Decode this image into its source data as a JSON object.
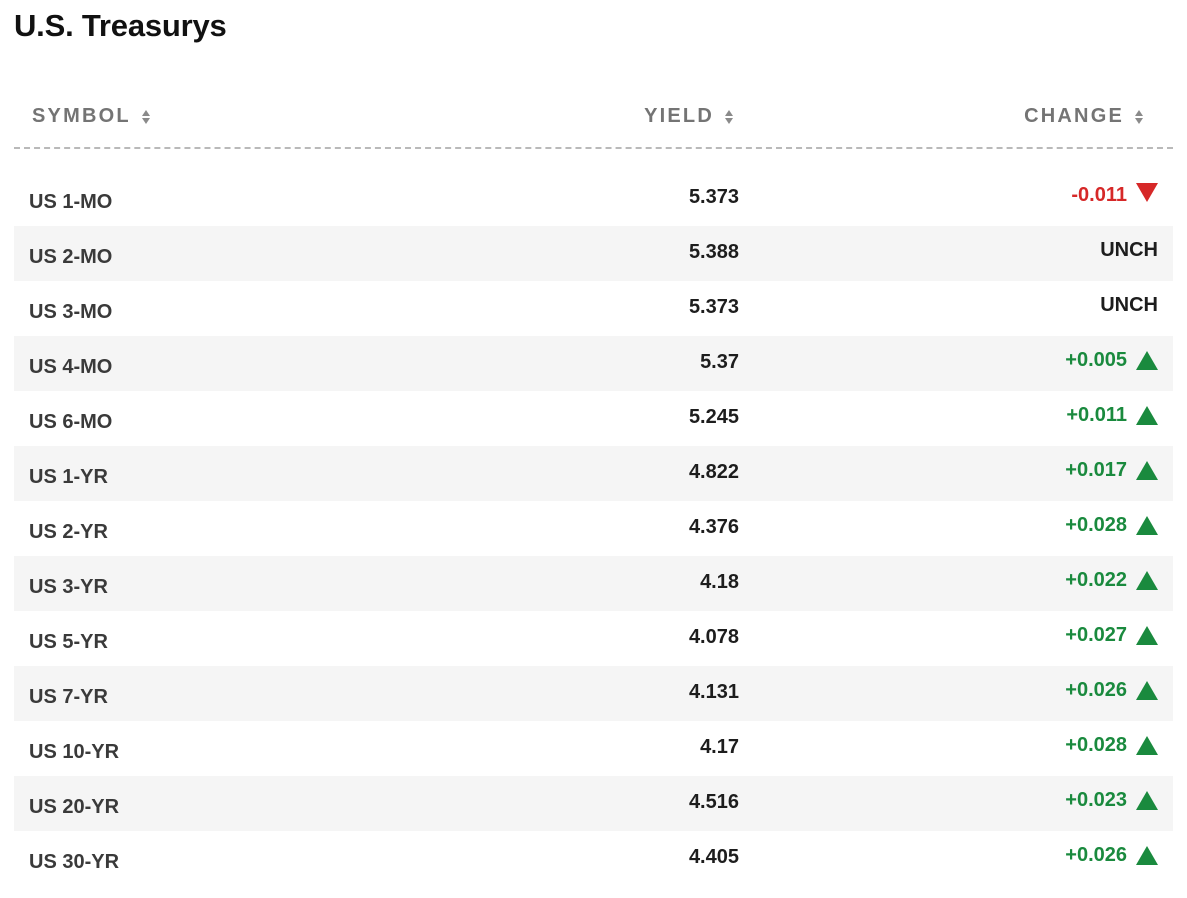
{
  "title": "U.S. Treasurys",
  "columns": {
    "symbol": "SYMBOL",
    "yield": "YIELD",
    "change": "CHANGE"
  },
  "colors": {
    "up": "#1a8a3e",
    "down": "#d62828",
    "header": "#747474",
    "row_alt": "#f5f5f5"
  },
  "rows": [
    {
      "symbol": "US 1-MO",
      "yield": "5.373",
      "change": "-0.011",
      "direction": "down"
    },
    {
      "symbol": "US 2-MO",
      "yield": "5.388",
      "change": "UNCH",
      "direction": "unch"
    },
    {
      "symbol": "US 3-MO",
      "yield": "5.373",
      "change": "UNCH",
      "direction": "unch"
    },
    {
      "symbol": "US 4-MO",
      "yield": "5.37",
      "change": "+0.005",
      "direction": "up"
    },
    {
      "symbol": "US 6-MO",
      "yield": "5.245",
      "change": "+0.011",
      "direction": "up"
    },
    {
      "symbol": "US 1-YR",
      "yield": "4.822",
      "change": "+0.017",
      "direction": "up"
    },
    {
      "symbol": "US 2-YR",
      "yield": "4.376",
      "change": "+0.028",
      "direction": "up"
    },
    {
      "symbol": "US 3-YR",
      "yield": "4.18",
      "change": "+0.022",
      "direction": "up"
    },
    {
      "symbol": "US 5-YR",
      "yield": "4.078",
      "change": "+0.027",
      "direction": "up"
    },
    {
      "symbol": "US 7-YR",
      "yield": "4.131",
      "change": "+0.026",
      "direction": "up"
    },
    {
      "symbol": "US 10-YR",
      "yield": "4.17",
      "change": "+0.028",
      "direction": "up"
    },
    {
      "symbol": "US 20-YR",
      "yield": "4.516",
      "change": "+0.023",
      "direction": "up"
    },
    {
      "symbol": "US 30-YR",
      "yield": "4.405",
      "change": "+0.026",
      "direction": "up"
    }
  ]
}
